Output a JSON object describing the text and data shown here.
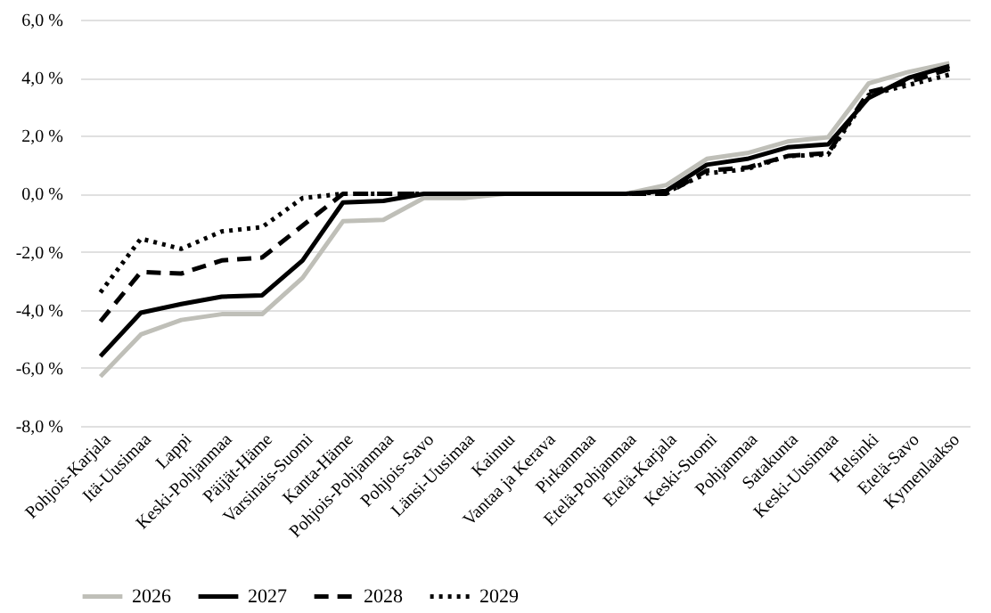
{
  "chart_data": {
    "type": "line",
    "categories": [
      "Pohjois-Karjala",
      "Itä-Uusimaa",
      "Lappi",
      "Keski-Pohjanmaa",
      "Päijät-Häme",
      "Varsinais-Suomi",
      "Kanta-Häme",
      "Pohjois-Pohjanmaa",
      "Pohjois-Savo",
      "Länsi-Uusimaa",
      "Kainuu",
      "Vantaa ja Kerava",
      "Pirkanmaa",
      "Etelä-Pohjanmaa",
      "Etelä-Karjala",
      "Keski-Suomi",
      "Pohjanmaa",
      "Satakunta",
      "Keski-Uusimaa",
      "Helsinki",
      "Etelä-Savo",
      "Kymenlaakso"
    ],
    "series": [
      {
        "name": "2026",
        "color": "#bfbfb8",
        "line_style": "solid",
        "values": [
          -6.3,
          -4.85,
          -4.35,
          -4.15,
          -4.15,
          -2.9,
          -0.95,
          -0.9,
          -0.15,
          -0.15,
          0,
          0,
          0,
          0,
          0.3,
          1.2,
          1.4,
          1.8,
          1.95,
          3.8,
          4.2,
          4.5
        ]
      },
      {
        "name": "2027",
        "color": "#000000",
        "line_style": "solid",
        "values": [
          -5.6,
          -4.1,
          -3.8,
          -3.55,
          -3.5,
          -2.3,
          -0.3,
          -0.25,
          0,
          0,
          0,
          0,
          0,
          0,
          0.1,
          1.0,
          1.2,
          1.6,
          1.7,
          3.3,
          4.0,
          4.4
        ]
      },
      {
        "name": "2028",
        "color": "#000000",
        "line_style": "dashed",
        "values": [
          -4.4,
          -2.7,
          -2.75,
          -2.3,
          -2.2,
          -1.1,
          0,
          0,
          0,
          0,
          0,
          0,
          0,
          0,
          0,
          0.8,
          0.9,
          1.3,
          1.4,
          3.5,
          3.85,
          4.3
        ]
      },
      {
        "name": "2029",
        "color": "#000000",
        "line_style": "dotted",
        "values": [
          -3.4,
          -1.55,
          -1.9,
          -1.3,
          -1.15,
          -0.15,
          0,
          0,
          0,
          0,
          0,
          0,
          0,
          0,
          0.05,
          0.7,
          0.85,
          1.3,
          1.35,
          3.4,
          3.75,
          4.1
        ]
      }
    ],
    "ylim": [
      -8,
      6
    ],
    "yticks": [
      {
        "value": -8,
        "label": "-8,0 %"
      },
      {
        "value": -6,
        "label": "-6,0 %"
      },
      {
        "value": -4,
        "label": "-4,0 %"
      },
      {
        "value": -2,
        "label": "-2,0 %"
      },
      {
        "value": 0,
        "label": "0,0 %"
      },
      {
        "value": 2,
        "label": "2,0 %"
      },
      {
        "value": 4,
        "label": "4,0 %"
      },
      {
        "value": 6,
        "label": "6,0 %"
      }
    ],
    "grid": "y",
    "legend": "bottom"
  }
}
